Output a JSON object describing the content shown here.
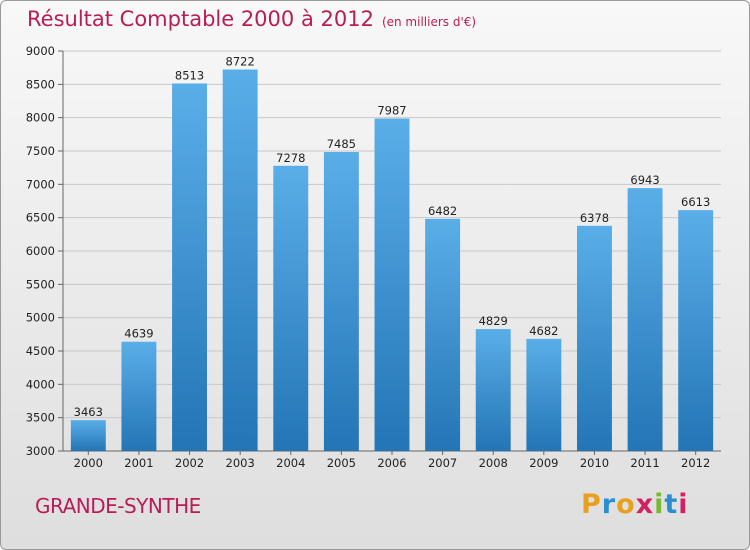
{
  "title": "Résultat Comptable 2000 à 2012",
  "subtitle": "(en milliers d'€)",
  "place": "GRANDE-SYNTHE",
  "logo": {
    "text": "Proxiti",
    "letters": [
      "P",
      "r",
      "o",
      "x",
      "i",
      "t",
      "i"
    ],
    "colors": [
      "#e8a020",
      "#2a8fd0",
      "#e8a020",
      "#d42060",
      "#7ab830",
      "#2a8fd0",
      "#d42060"
    ]
  },
  "colors": {
    "bar_top": "#5aaee8",
    "bar_bottom": "#2375b5",
    "title": "#b81d55",
    "grid": "#c8c8c8"
  },
  "chart_data": {
    "type": "bar",
    "title": "Résultat Comptable 2000 à 2012",
    "xlabel": "",
    "ylabel": "en milliers d'€",
    "categories": [
      "2000",
      "2001",
      "2002",
      "2003",
      "2004",
      "2005",
      "2006",
      "2007",
      "2008",
      "2009",
      "2010",
      "2011",
      "2012"
    ],
    "values": [
      3463,
      4639,
      8513,
      8722,
      7278,
      7485,
      7987,
      6482,
      4829,
      4682,
      6378,
      6943,
      6613
    ],
    "ylim": [
      3000,
      9000
    ],
    "yticks": [
      3000,
      3500,
      4000,
      4500,
      5000,
      5500,
      6000,
      6500,
      7000,
      7500,
      8000,
      8500,
      9000
    ],
    "grid": true
  }
}
